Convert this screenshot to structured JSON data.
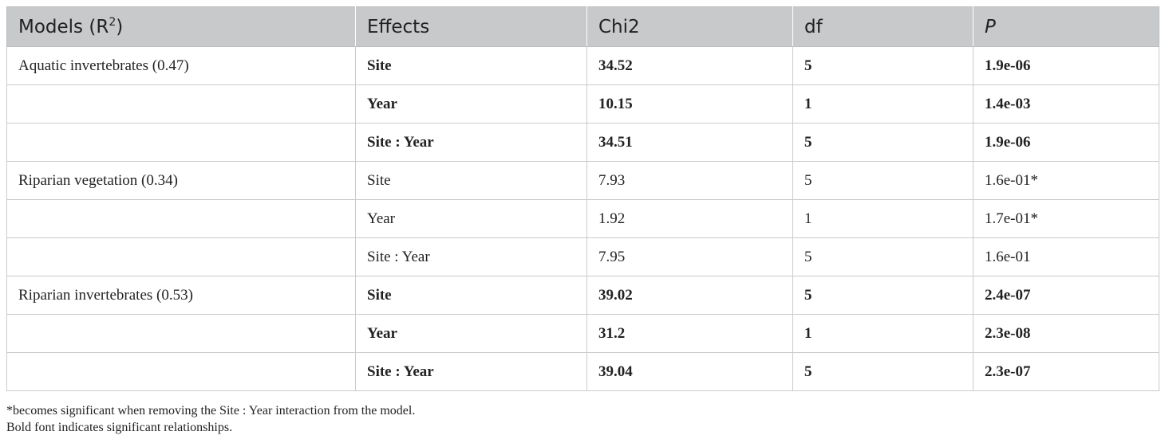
{
  "table": {
    "headers": {
      "models": "Models (R",
      "models_sup": "2",
      "models_close": ")",
      "effects": "Effects",
      "chi2": "Chi2",
      "df": "df",
      "p": "P"
    },
    "rows": [
      {
        "model": "Aquatic invertebrates (0.47)",
        "effect": "Site",
        "chi2": "34.52",
        "df": "5",
        "p": "1.9e-06",
        "bold": true
      },
      {
        "model": "",
        "effect": "Year",
        "chi2": "10.15",
        "df": "1",
        "p": "1.4e-03",
        "bold": true
      },
      {
        "model": "",
        "effect": "Site : Year",
        "chi2": "34.51",
        "df": "5",
        "p": "1.9e-06",
        "bold": true
      },
      {
        "model": "Riparian vegetation (0.34)",
        "effect": "Site",
        "chi2": "7.93",
        "df": "5",
        "p": "1.6e-01*",
        "bold": false
      },
      {
        "model": "",
        "effect": "Year",
        "chi2": "1.92",
        "df": "1",
        "p": "1.7e-01*",
        "bold": false
      },
      {
        "model": "",
        "effect": "Site : Year",
        "chi2": "7.95",
        "df": "5",
        "p": "1.6e-01",
        "bold": false
      },
      {
        "model": "Riparian invertebrates (0.53)",
        "effect": "Site",
        "chi2": "39.02",
        "df": "5",
        "p": "2.4e-07",
        "bold": true
      },
      {
        "model": "",
        "effect": "Year",
        "chi2": "31.2",
        "df": "1",
        "p": "2.3e-08",
        "bold": true
      },
      {
        "model": "",
        "effect": "Site : Year",
        "chi2": "39.04",
        "df": "5",
        "p": "2.3e-07",
        "bold": true
      }
    ]
  },
  "footnotes": {
    "asterisk_note": "*becomes significant when removing the Site : Year interaction from the model.",
    "bold_note": "Bold font indicates significant relationships."
  }
}
